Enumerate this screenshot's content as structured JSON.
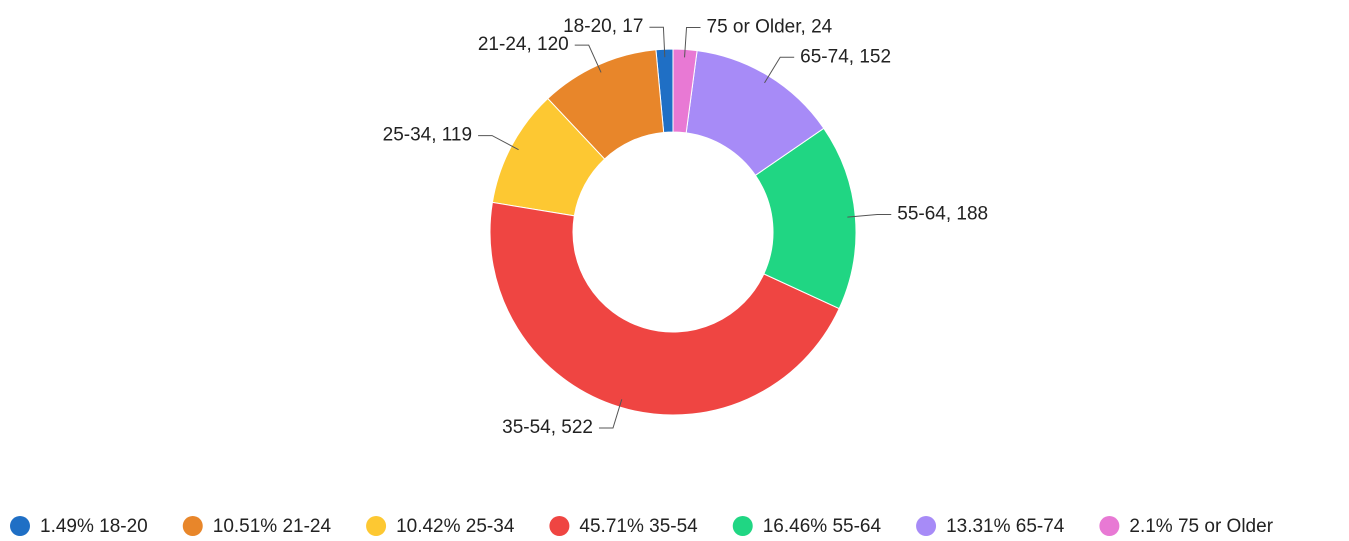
{
  "chart_data": {
    "type": "donut",
    "categories": [
      "18-20",
      "21-24",
      "25-34",
      "35-54",
      "55-64",
      "65-74",
      "75 or Older"
    ],
    "values": [
      17,
      120,
      119,
      522,
      188,
      152,
      24
    ],
    "value_labels": [
      "18-20, 17",
      "21-24, 120",
      "25-34, 119",
      "35-54, 522",
      "55-64, 188",
      "65-74, 152",
      "75 or Older, 24"
    ],
    "legend_labels": [
      "1.49% 18-20",
      "10.51% 21-24",
      "10.42% 25-34",
      "45.71% 35-54",
      "16.46% 55-64",
      "13.31% 65-74",
      "2.1% 75 or Older"
    ],
    "colors": [
      "#1f6fc5",
      "#e8862a",
      "#fdc832",
      "#ef4542",
      "#20d683",
      "#a78bf7",
      "#e879d4"
    ],
    "legend": "bottom"
  }
}
